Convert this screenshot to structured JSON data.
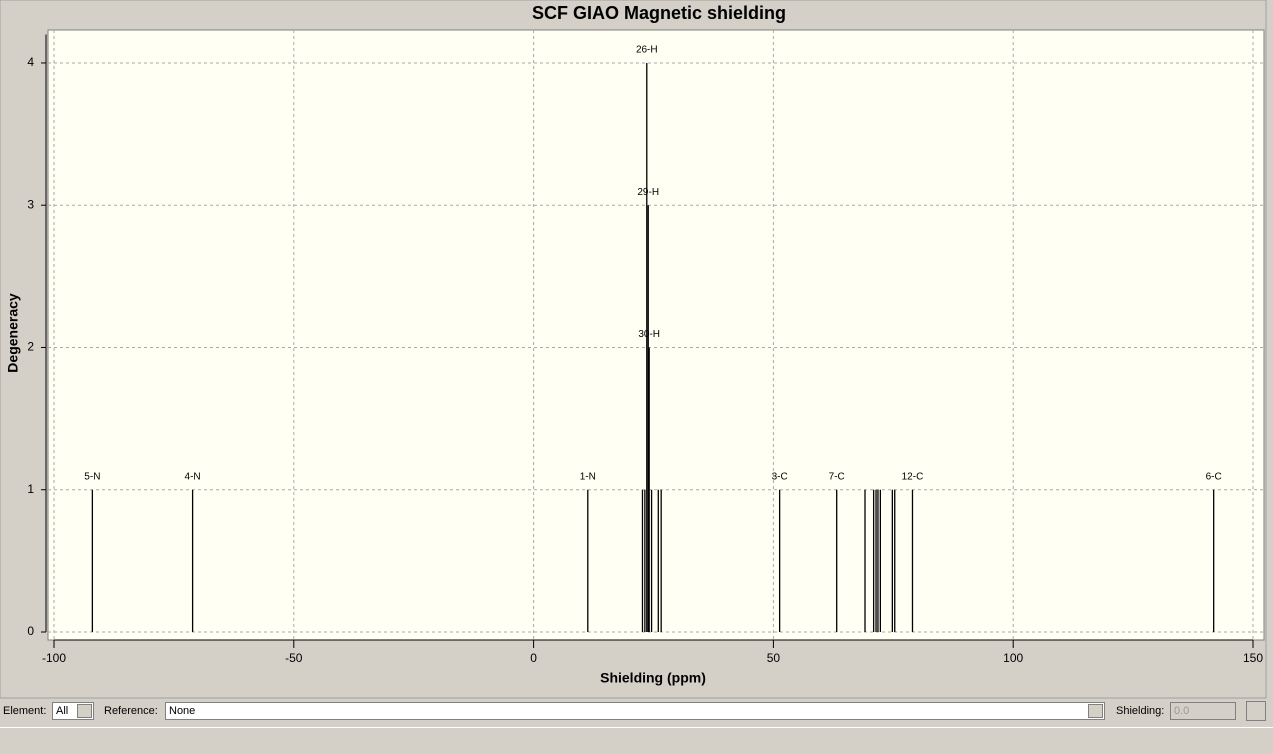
{
  "chart_data": {
    "type": "stick",
    "title": "SCF GIAO Magnetic shielding",
    "x_label": "Shielding (ppm)",
    "y_label": "Degeneracy",
    "x": [
      -92,
      -71.1,
      11.3,
      22.7,
      23.2,
      23.6,
      23.9,
      24.1,
      24.6,
      26.0,
      26.6,
      51.3,
      63.2,
      69.1,
      70.9,
      71.4,
      71.8,
      72.3,
      74.8,
      75.3,
      79.0,
      141.8
    ],
    "values": [
      1,
      1,
      1,
      1,
      1,
      4,
      3,
      2,
      1,
      1,
      1,
      1,
      1,
      1,
      1,
      1,
      1,
      1,
      1,
      1,
      1,
      1
    ],
    "labels": [
      "5-N",
      "4-N",
      "1-N",
      null,
      null,
      "26-H",
      "29-H",
      "30-H",
      null,
      null,
      null,
      "3-C",
      "7-C",
      null,
      null,
      null,
      null,
      null,
      null,
      null,
      "12-C",
      "6-C"
    ],
    "color": "#000000",
    "xlim": [
      -100,
      150
    ],
    "xticks": [
      -100,
      -50,
      0,
      50,
      100,
      150
    ],
    "ylim": [
      0,
      4.2
    ],
    "yticks": [
      0,
      1,
      2,
      3,
      4
    ],
    "grid": true
  },
  "controls": {
    "element_label": "Element:",
    "element_value": "All",
    "reference_label": "Reference:",
    "reference_value": "None",
    "shielding_label": "Shielding:",
    "shielding_value": "0.0"
  }
}
